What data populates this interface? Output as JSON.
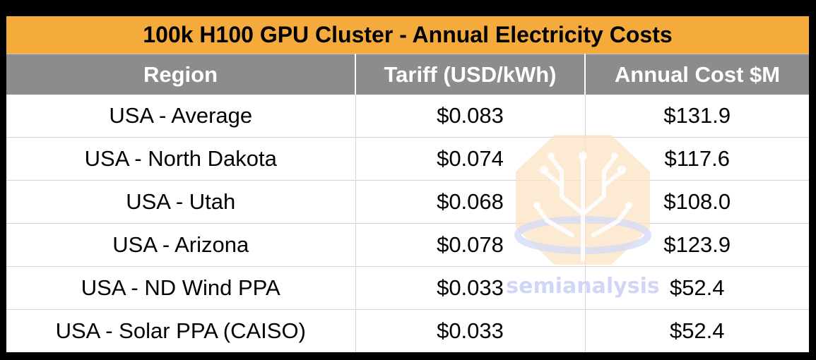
{
  "chart_data": {
    "type": "table",
    "title": "100k H100 GPU Cluster - Annual Electricity Costs",
    "columns": [
      "Region",
      "Tariff (USD/kWh)",
      "Annual Cost $M"
    ],
    "rows": [
      [
        "USA - Average",
        "$0.083",
        "$131.9"
      ],
      [
        "USA - North Dakota",
        "$0.074",
        "$117.6"
      ],
      [
        "USA - Utah",
        "$0.068",
        "$108.0"
      ],
      [
        "USA - Arizona",
        "$0.078",
        "$123.9"
      ],
      [
        "USA - ND Wind PPA",
        "$0.033",
        "$52.4"
      ],
      [
        "USA - Solar PPA (CAISO)",
        "$0.033",
        "$52.4"
      ]
    ]
  },
  "watermark": {
    "text": "semianalysis",
    "icon": "tree-circuit-logo"
  },
  "colors": {
    "title_bg": "#f5ab3c",
    "header_bg": "#8c8c8c",
    "header_text": "#ffffff",
    "frame": "#000000",
    "watermark_orange": "#f7c58a",
    "watermark_blue": "#c8d0f4"
  }
}
